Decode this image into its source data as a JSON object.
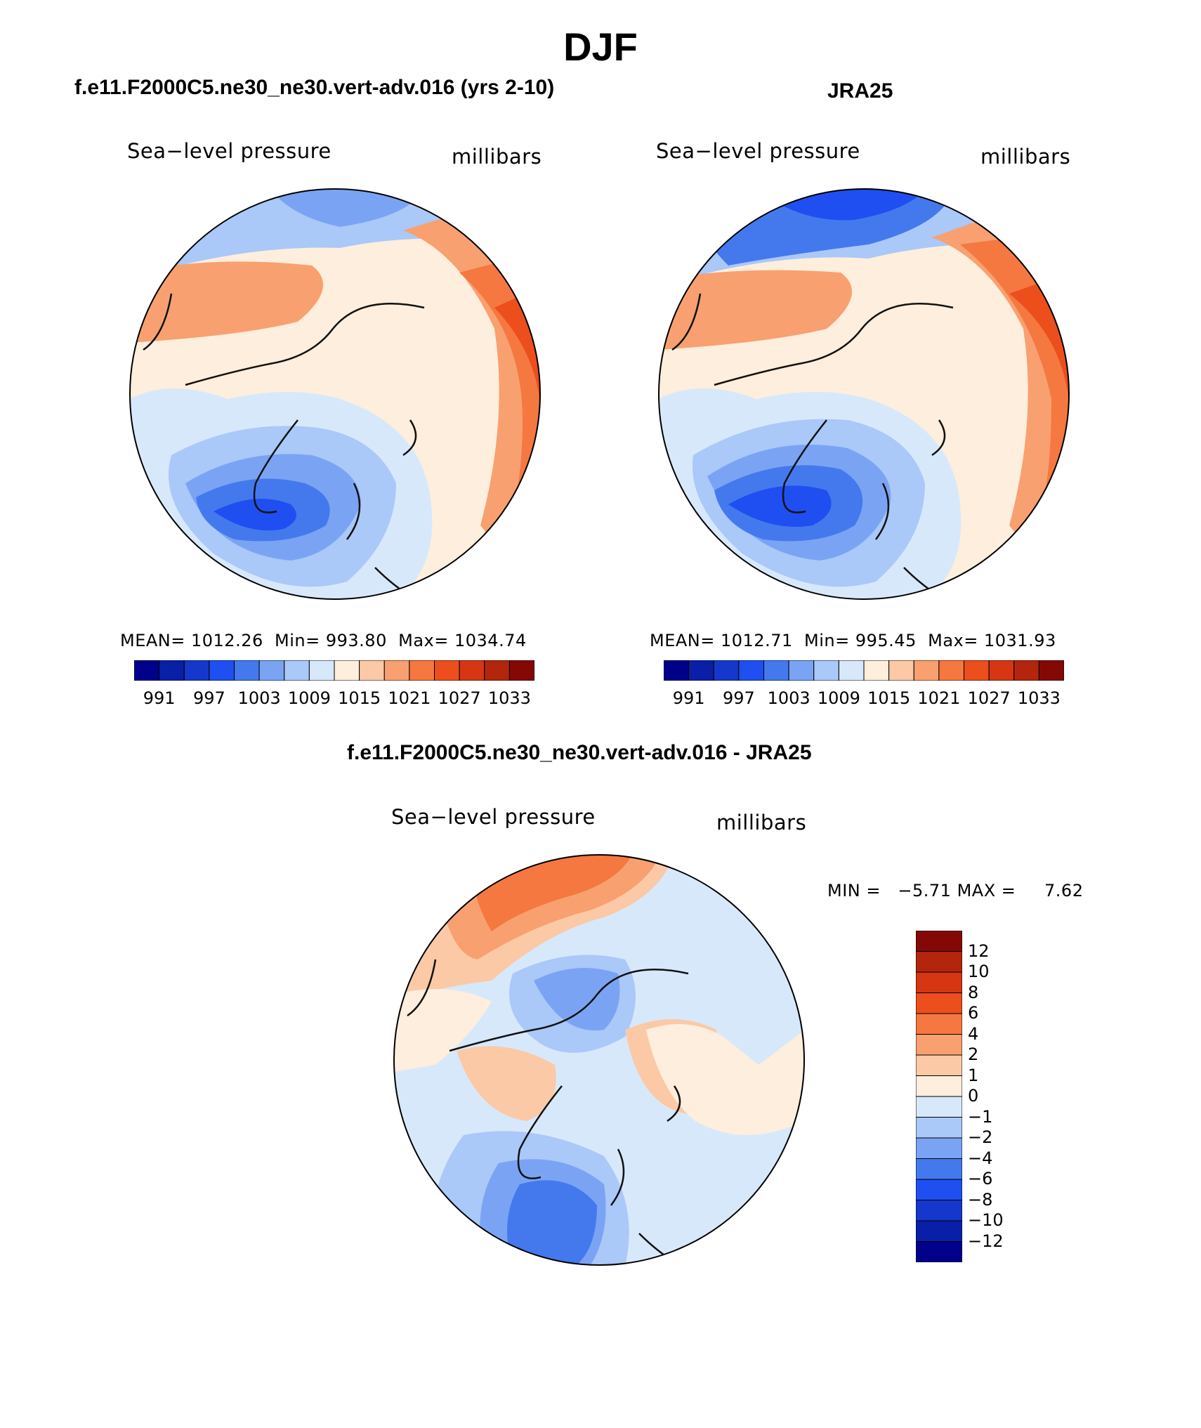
{
  "figure": {
    "title": "DJF"
  },
  "panels": {
    "model": {
      "title": "f.e11.F2000C5.ne30_ne30.vert-adv.016 (yrs 2-10)",
      "variable": "Sea−level pressure",
      "units": "millibars",
      "stats": {
        "mean_label": "MEAN=",
        "mean": "1012.26",
        "min_label": "Min=",
        "min": "993.80",
        "max_label": "Max=",
        "max": "1034.74"
      }
    },
    "obs": {
      "title": "JRA25",
      "variable": "Sea−level pressure",
      "units": "millibars",
      "stats": {
        "mean_label": "MEAN=",
        "mean": "1012.71",
        "min_label": "Min=",
        "min": "995.45",
        "max_label": "Max=",
        "max": "1031.93"
      }
    },
    "diff": {
      "title": "f.e11.F2000C5.ne30_ne30.vert-adv.016 - JRA25",
      "variable": "Sea−level pressure",
      "units": "millibars",
      "stats": {
        "min_label": "MIN =",
        "min": "−5.71",
        "max_label": "MAX =",
        "max": "7.62"
      }
    }
  },
  "colorbars": {
    "abs": {
      "colors": [
        "#00008b",
        "#0a1fa8",
        "#1537cc",
        "#1f4ff0",
        "#4479ee",
        "#7aa4f3",
        "#aac8f8",
        "#d8e8fb",
        "#fdeedd",
        "#fbc9a6",
        "#f8a070",
        "#f57840",
        "#ec4f1c",
        "#d63612",
        "#b3260c",
        "#840806"
      ],
      "labels": [
        "991",
        "997",
        "1003",
        "1009",
        "1015",
        "1021",
        "1027",
        "1033"
      ]
    },
    "diff": {
      "colors": [
        "#840806",
        "#b3260c",
        "#d63612",
        "#ec4f1c",
        "#f57840",
        "#f8a070",
        "#fbc9a6",
        "#fdeedd",
        "#d8e8fb",
        "#aac8f8",
        "#7aa4f3",
        "#4479ee",
        "#1f4ff0",
        "#1537cc",
        "#0a1fa8",
        "#00008b"
      ],
      "labels": [
        "12",
        "10",
        "8",
        "6",
        "4",
        "2",
        "1",
        "0",
        "−1",
        "−2",
        "−4",
        "−6",
        "−8",
        "−10",
        "−12"
      ]
    }
  }
}
